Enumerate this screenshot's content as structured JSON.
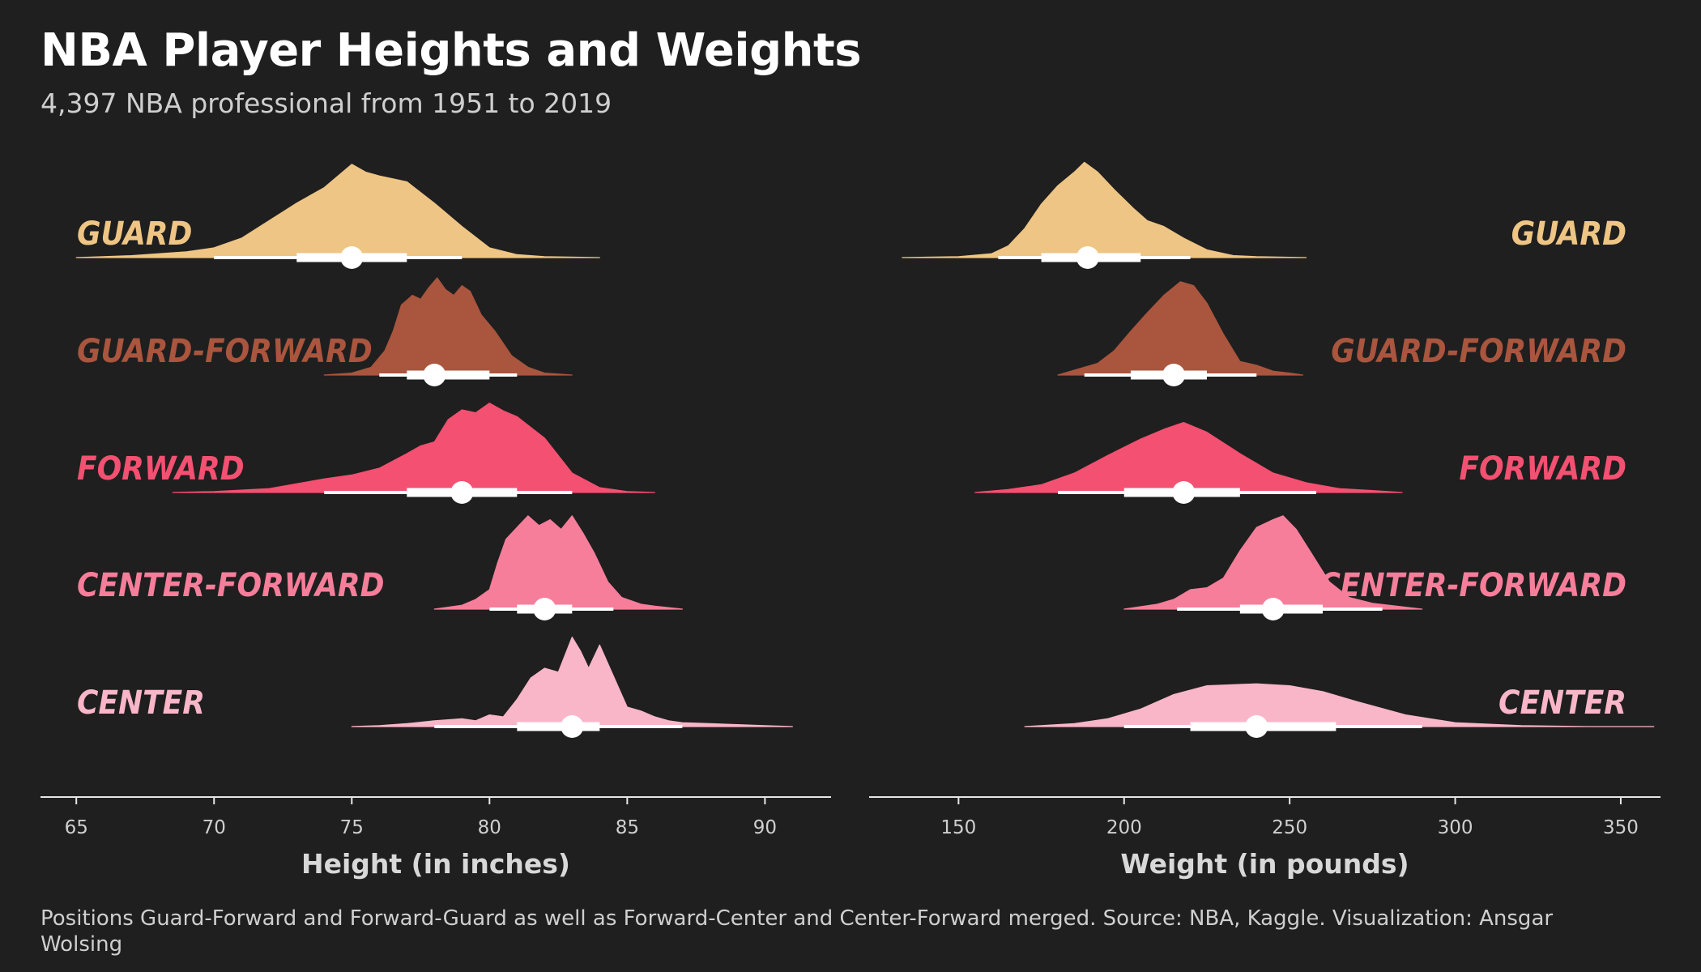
{
  "title": "NBA Player Heights and Weights",
  "subtitle": "4,397 NBA professional from 1951 to 2019",
  "caption": "Positions Guard-Forward and Forward-Guard as well as Forward-Center and Center-Forward merged. Source: NBA, Kaggle. Visualization: Ansgar Wolsing",
  "chart_data": [
    {
      "type": "area",
      "subtype": "ridgeline",
      "xlabel": "Height (in inches)",
      "xlim": [
        63.7,
        92.4
      ],
      "xticks": [
        65,
        70,
        75,
        80,
        85,
        90
      ],
      "label_side": "left",
      "series": [
        {
          "name": "GUARD",
          "color": "#eec584",
          "density": [
            [
              65,
              0.0
            ],
            [
              67,
              0.02
            ],
            [
              68,
              0.04
            ],
            [
              69,
              0.06
            ],
            [
              70,
              0.1
            ],
            [
              71,
              0.2
            ],
            [
              72,
              0.38
            ],
            [
              73,
              0.56
            ],
            [
              74,
              0.72
            ],
            [
              74.5,
              0.84
            ],
            [
              75,
              0.96
            ],
            [
              75.5,
              0.88
            ],
            [
              76,
              0.84
            ],
            [
              77,
              0.78
            ],
            [
              78,
              0.56
            ],
            [
              79,
              0.32
            ],
            [
              80,
              0.1
            ],
            [
              81,
              0.03
            ],
            [
              82,
              0.01
            ],
            [
              84,
              0.0
            ]
          ],
          "p66": [
            73,
            77
          ],
          "p95": [
            70,
            79
          ],
          "median": 75
        },
        {
          "name": "GUARD-FORWARD",
          "color": "#aa553e",
          "density": [
            [
              74,
              0.0
            ],
            [
              75,
              0.02
            ],
            [
              75.7,
              0.08
            ],
            [
              76.2,
              0.25
            ],
            [
              76.5,
              0.45
            ],
            [
              76.8,
              0.72
            ],
            [
              77.2,
              0.82
            ],
            [
              77.5,
              0.78
            ],
            [
              77.8,
              0.9
            ],
            [
              78.1,
              1.0
            ],
            [
              78.4,
              0.88
            ],
            [
              78.7,
              0.82
            ],
            [
              79,
              0.92
            ],
            [
              79.3,
              0.86
            ],
            [
              79.7,
              0.62
            ],
            [
              80.2,
              0.45
            ],
            [
              80.8,
              0.2
            ],
            [
              81.4,
              0.08
            ],
            [
              82,
              0.02
            ],
            [
              83,
              0.0
            ]
          ],
          "p66": [
            77,
            80
          ],
          "p95": [
            76,
            81
          ],
          "median": 78
        },
        {
          "name": "FORWARD",
          "color": "#f45071",
          "density": [
            [
              68.5,
              0.0
            ],
            [
              70,
              0.01
            ],
            [
              72,
              0.04
            ],
            [
              73,
              0.09
            ],
            [
              74,
              0.14
            ],
            [
              75,
              0.18
            ],
            [
              76,
              0.25
            ],
            [
              77,
              0.4
            ],
            [
              77.5,
              0.48
            ],
            [
              78,
              0.52
            ],
            [
              78.5,
              0.75
            ],
            [
              79,
              0.85
            ],
            [
              79.5,
              0.82
            ],
            [
              80,
              0.92
            ],
            [
              80.5,
              0.84
            ],
            [
              81,
              0.78
            ],
            [
              82,
              0.56
            ],
            [
              83,
              0.2
            ],
            [
              84,
              0.05
            ],
            [
              85,
              0.01
            ],
            [
              86,
              0.0
            ]
          ],
          "p66": [
            77,
            81
          ],
          "p95": [
            74,
            83
          ],
          "median": 79
        },
        {
          "name": "CENTER-FORWARD",
          "color": "#f77e9a",
          "density": [
            [
              78,
              0.0
            ],
            [
              79,
              0.04
            ],
            [
              79.5,
              0.1
            ],
            [
              80,
              0.2
            ],
            [
              80.3,
              0.48
            ],
            [
              80.6,
              0.72
            ],
            [
              81,
              0.84
            ],
            [
              81.4,
              0.96
            ],
            [
              81.8,
              0.86
            ],
            [
              82.2,
              0.92
            ],
            [
              82.6,
              0.82
            ],
            [
              83,
              0.96
            ],
            [
              83.4,
              0.78
            ],
            [
              83.8,
              0.58
            ],
            [
              84.3,
              0.28
            ],
            [
              84.8,
              0.12
            ],
            [
              85.5,
              0.05
            ],
            [
              86,
              0.03
            ],
            [
              87,
              0.0
            ]
          ],
          "p66": [
            81,
            83
          ],
          "p95": [
            80,
            84.5
          ],
          "median": 82
        },
        {
          "name": "CENTER",
          "color": "#f9b6c8",
          "density": [
            [
              75,
              0.0
            ],
            [
              76,
              0.01
            ],
            [
              77,
              0.03
            ],
            [
              78,
              0.06
            ],
            [
              79,
              0.08
            ],
            [
              79.5,
              0.06
            ],
            [
              80,
              0.12
            ],
            [
              80.5,
              0.1
            ],
            [
              81,
              0.28
            ],
            [
              81.5,
              0.5
            ],
            [
              82,
              0.6
            ],
            [
              82.5,
              0.56
            ],
            [
              83,
              0.92
            ],
            [
              83.3,
              0.78
            ],
            [
              83.6,
              0.6
            ],
            [
              84,
              0.84
            ],
            [
              84.5,
              0.52
            ],
            [
              85,
              0.2
            ],
            [
              85.5,
              0.16
            ],
            [
              86,
              0.1
            ],
            [
              86.5,
              0.06
            ],
            [
              87,
              0.04
            ],
            [
              88,
              0.03
            ],
            [
              89,
              0.02
            ],
            [
              90,
              0.01
            ],
            [
              91,
              0.0
            ]
          ],
          "p66": [
            81,
            84
          ],
          "p95": [
            78,
            87
          ],
          "median": 83
        }
      ]
    },
    {
      "type": "area",
      "subtype": "ridgeline",
      "xlabel": "Weight (in pounds)",
      "xlim": [
        123,
        362
      ],
      "xticks": [
        150,
        200,
        250,
        300,
        350
      ],
      "label_side": "right",
      "series": [
        {
          "name": "GUARD",
          "color": "#eec584",
          "density": [
            [
              133,
              0.0
            ],
            [
              150,
              0.01
            ],
            [
              160,
              0.04
            ],
            [
              165,
              0.12
            ],
            [
              170,
              0.3
            ],
            [
              175,
              0.55
            ],
            [
              180,
              0.74
            ],
            [
              185,
              0.88
            ],
            [
              188,
              0.98
            ],
            [
              192,
              0.88
            ],
            [
              197,
              0.7
            ],
            [
              203,
              0.5
            ],
            [
              207,
              0.38
            ],
            [
              212,
              0.32
            ],
            [
              218,
              0.2
            ],
            [
              225,
              0.08
            ],
            [
              233,
              0.02
            ],
            [
              240,
              0.01
            ],
            [
              255,
              0.0
            ]
          ],
          "p66": [
            175,
            205
          ],
          "p95": [
            162,
            220
          ],
          "median": 189
        },
        {
          "name": "GUARD-FORWARD",
          "color": "#aa553e",
          "density": [
            [
              180,
              0.0
            ],
            [
              185,
              0.05
            ],
            [
              192,
              0.12
            ],
            [
              197,
              0.25
            ],
            [
              202,
              0.45
            ],
            [
              207,
              0.64
            ],
            [
              212,
              0.82
            ],
            [
              217,
              0.96
            ],
            [
              221,
              0.92
            ],
            [
              225,
              0.74
            ],
            [
              230,
              0.42
            ],
            [
              235,
              0.14
            ],
            [
              240,
              0.1
            ],
            [
              245,
              0.04
            ],
            [
              250,
              0.02
            ],
            [
              254,
              0.0
            ]
          ],
          "p66": [
            202,
            225
          ],
          "p95": [
            188,
            240
          ],
          "median": 215
        },
        {
          "name": "FORWARD",
          "color": "#f45071",
          "density": [
            [
              155,
              0.0
            ],
            [
              165,
              0.03
            ],
            [
              175,
              0.08
            ],
            [
              185,
              0.2
            ],
            [
              195,
              0.38
            ],
            [
              205,
              0.55
            ],
            [
              212,
              0.65
            ],
            [
              218,
              0.72
            ],
            [
              225,
              0.62
            ],
            [
              235,
              0.4
            ],
            [
              245,
              0.2
            ],
            [
              255,
              0.1
            ],
            [
              265,
              0.04
            ],
            [
              275,
              0.02
            ],
            [
              284,
              0.0
            ]
          ],
          "p66": [
            200,
            235
          ],
          "p95": [
            180,
            258
          ],
          "median": 218
        },
        {
          "name": "CENTER-FORWARD",
          "color": "#f77e9a",
          "density": [
            [
              200,
              0.0
            ],
            [
              210,
              0.05
            ],
            [
              215,
              0.1
            ],
            [
              220,
              0.2
            ],
            [
              225,
              0.22
            ],
            [
              230,
              0.32
            ],
            [
              235,
              0.6
            ],
            [
              240,
              0.84
            ],
            [
              245,
              0.92
            ],
            [
              248,
              0.96
            ],
            [
              252,
              0.82
            ],
            [
              257,
              0.55
            ],
            [
              262,
              0.28
            ],
            [
              268,
              0.12
            ],
            [
              275,
              0.06
            ],
            [
              285,
              0.02
            ],
            [
              290,
              0.0
            ]
          ],
          "p66": [
            235,
            260
          ],
          "p95": [
            216,
            278
          ],
          "median": 245
        },
        {
          "name": "CENTER",
          "color": "#f9b6c8",
          "density": [
            [
              170,
              0.0
            ],
            [
              185,
              0.03
            ],
            [
              195,
              0.08
            ],
            [
              205,
              0.18
            ],
            [
              215,
              0.33
            ],
            [
              225,
              0.42
            ],
            [
              240,
              0.44
            ],
            [
              250,
              0.42
            ],
            [
              260,
              0.36
            ],
            [
              270,
              0.26
            ],
            [
              285,
              0.12
            ],
            [
              300,
              0.04
            ],
            [
              320,
              0.01
            ],
            [
              340,
              0.0
            ],
            [
              360,
              0.0
            ]
          ],
          "p66": [
            220,
            264
          ],
          "p95": [
            200,
            290
          ],
          "median": 240
        }
      ]
    }
  ],
  "colors": {
    "background": "#1f1f1f",
    "axis": "#e6e6e6",
    "interval": "#ffffff"
  }
}
